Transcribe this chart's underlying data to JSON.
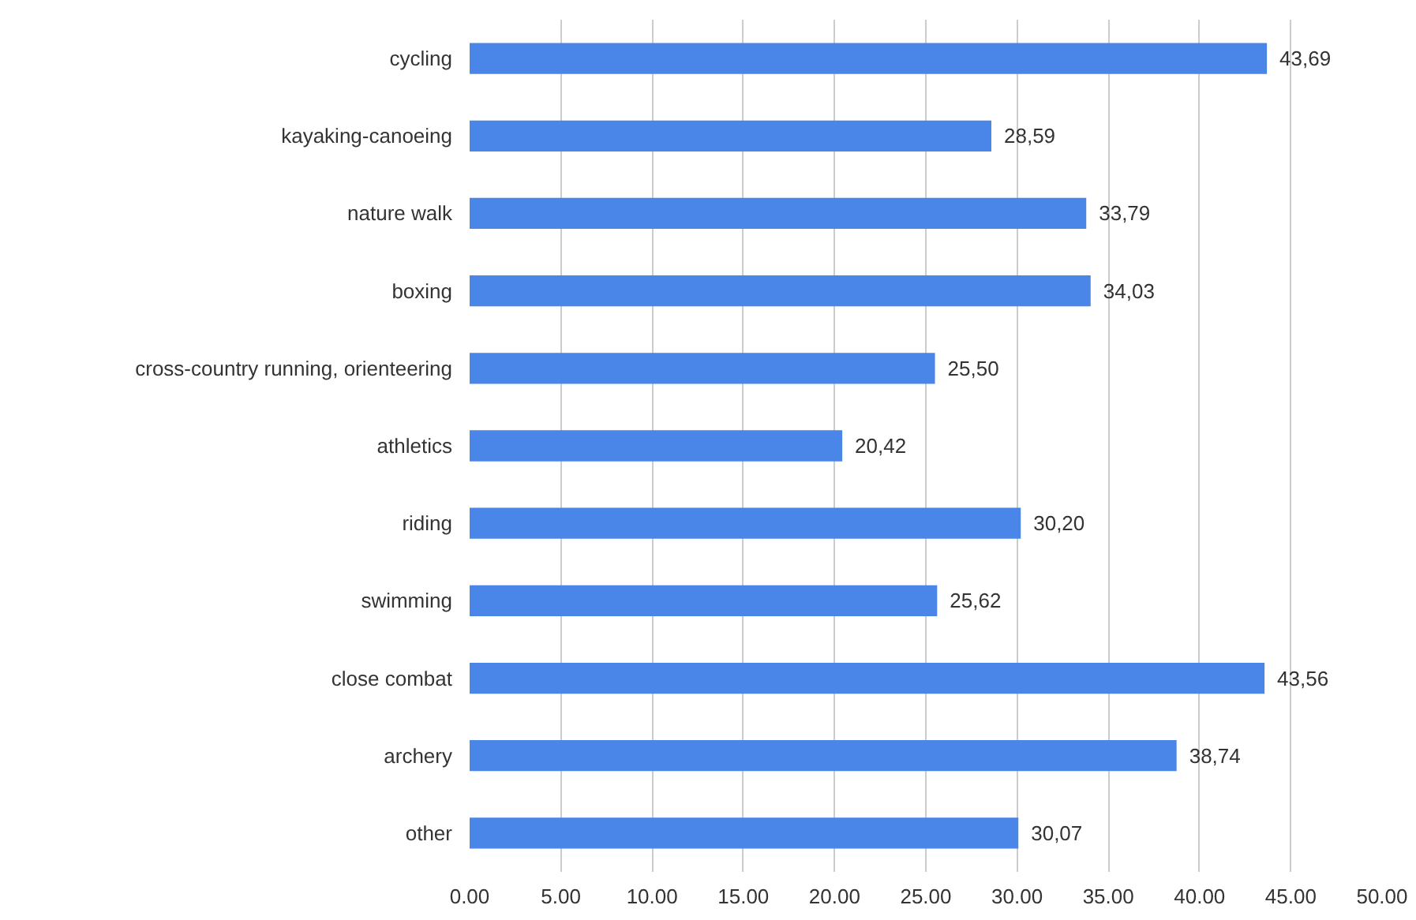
{
  "chart_data": {
    "type": "bar",
    "orientation": "horizontal",
    "categories": [
      "cycling",
      "kayaking-canoeing",
      "nature walk",
      "boxing",
      "cross-country running, orienteering",
      "athletics",
      "riding",
      "swimming",
      "close combat",
      "archery",
      "other"
    ],
    "values": [
      43.69,
      28.59,
      33.79,
      34.03,
      25.5,
      20.42,
      30.2,
      25.62,
      43.56,
      38.74,
      30.07
    ],
    "value_labels": [
      "43,69",
      "28,59",
      "33,79",
      "34,03",
      "25,50",
      "20,42",
      "30,20",
      "25,62",
      "43,56",
      "38,74",
      "30,07"
    ],
    "color": "#4a86e8",
    "xlim": [
      0,
      50
    ],
    "xticks": [
      {
        "value": 0,
        "label": "0.00"
      },
      {
        "value": 5,
        "label": "5.00"
      },
      {
        "value": 10,
        "label": "10.00"
      },
      {
        "value": 15,
        "label": "15.00"
      },
      {
        "value": 20,
        "label": "20.00"
      },
      {
        "value": 25,
        "label": "25.00"
      },
      {
        "value": 30,
        "label": "30.00"
      },
      {
        "value": 35,
        "label": "35.00"
      },
      {
        "value": 40,
        "label": "40.00"
      },
      {
        "value": 45,
        "label": "45.00"
      },
      {
        "value": 50,
        "label": "50.00"
      }
    ],
    "grid": "x"
  }
}
